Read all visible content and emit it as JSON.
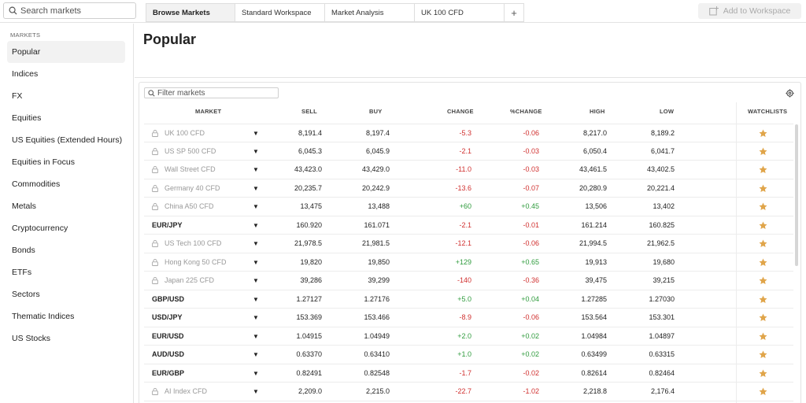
{
  "search": {
    "placeholder": "Search markets"
  },
  "tabs": [
    {
      "label": "Browse Markets"
    },
    {
      "label": "Standard Workspace"
    },
    {
      "label": "Market Analysis"
    },
    {
      "label": "UK 100 CFD"
    }
  ],
  "add_tab_label": "+",
  "add_workspace_label": "Add to Workspace",
  "sidebar": {
    "heading": "MARKETS",
    "items": [
      {
        "label": "Popular"
      },
      {
        "label": "Indices"
      },
      {
        "label": "FX"
      },
      {
        "label": "Equities"
      },
      {
        "label": "US Equities (Extended Hours)"
      },
      {
        "label": "Equities in Focus"
      },
      {
        "label": "Commodities"
      },
      {
        "label": "Metals"
      },
      {
        "label": "Cryptocurrency"
      },
      {
        "label": "Bonds"
      },
      {
        "label": "ETFs"
      },
      {
        "label": "Sectors"
      },
      {
        "label": "Thematic Indices"
      },
      {
        "label": "US Stocks"
      }
    ]
  },
  "page_title": "Popular",
  "filter": {
    "placeholder": "Filter markets"
  },
  "table": {
    "headers": {
      "market": "MARKET",
      "sell": "SELL",
      "buy": "BUY",
      "change": "CHANGE",
      "pchange": "%CHANGE",
      "high": "HIGH",
      "low": "LOW",
      "watchlists": "WATCHLISTS"
    },
    "rows": [
      {
        "market": "UK 100 CFD",
        "sell": "8,191.4",
        "buy": "8,197.4",
        "change": "-5.3",
        "pchange": "-0.06",
        "high": "8,217.0",
        "low": "8,189.2"
      },
      {
        "market": "US SP 500 CFD",
        "sell": "6,045.3",
        "buy": "6,045.9",
        "change": "-2.1",
        "pchange": "-0.03",
        "high": "6,050.4",
        "low": "6,041.7"
      },
      {
        "market": "Wall Street CFD",
        "sell": "43,423.0",
        "buy": "43,429.0",
        "change": "-11.0",
        "pchange": "-0.03",
        "high": "43,461.5",
        "low": "43,402.5"
      },
      {
        "market": "Germany 40 CFD",
        "sell": "20,235.7",
        "buy": "20,242.9",
        "change": "-13.6",
        "pchange": "-0.07",
        "high": "20,280.9",
        "low": "20,221.4"
      },
      {
        "market": "China A50 CFD",
        "sell": "13,475",
        "buy": "13,488",
        "change": "+60",
        "pchange": "+0.45",
        "high": "13,506",
        "low": "13,402"
      },
      {
        "market": "EUR/JPY",
        "sell": "160.920",
        "buy": "161.071",
        "change": "-2.1",
        "pchange": "-0.01",
        "high": "161.214",
        "low": "160.825"
      },
      {
        "market": "US Tech 100 CFD",
        "sell": "21,978.5",
        "buy": "21,981.5",
        "change": "-12.1",
        "pchange": "-0.06",
        "high": "21,994.5",
        "low": "21,962.5"
      },
      {
        "market": "Hong Kong 50 CFD",
        "sell": "19,820",
        "buy": "19,850",
        "change": "+129",
        "pchange": "+0.65",
        "high": "19,913",
        "low": "19,680"
      },
      {
        "market": "Japan 225 CFD",
        "sell": "39,286",
        "buy": "39,299",
        "change": "-140",
        "pchange": "-0.36",
        "high": "39,475",
        "low": "39,215"
      },
      {
        "market": "GBP/USD",
        "sell": "1.27127",
        "buy": "1.27176",
        "change": "+5.0",
        "pchange": "+0.04",
        "high": "1.27285",
        "low": "1.27030"
      },
      {
        "market": "USD/JPY",
        "sell": "153.369",
        "buy": "153.466",
        "change": "-8.9",
        "pchange": "-0.06",
        "high": "153.564",
        "low": "153.301"
      },
      {
        "market": "EUR/USD",
        "sell": "1.04915",
        "buy": "1.04949",
        "change": "+2.0",
        "pchange": "+0.02",
        "high": "1.04984",
        "low": "1.04897"
      },
      {
        "market": "AUD/USD",
        "sell": "0.63370",
        "buy": "0.63410",
        "change": "+1.0",
        "pchange": "+0.02",
        "high": "0.63499",
        "low": "0.63315"
      },
      {
        "market": "EUR/GBP",
        "sell": "0.82491",
        "buy": "0.82548",
        "change": "-1.7",
        "pchange": "-0.02",
        "high": "0.82614",
        "low": "0.82464"
      },
      {
        "market": "AI Index CFD",
        "sell": "2,209.0",
        "buy": "2,215.0",
        "change": "-22.7",
        "pchange": "-1.02",
        "high": "2,218.8",
        "low": "2,176.4"
      }
    ]
  },
  "colors": {
    "negative": "#d0302f",
    "positive": "#2f9b3d",
    "star": "#e0a54a"
  }
}
